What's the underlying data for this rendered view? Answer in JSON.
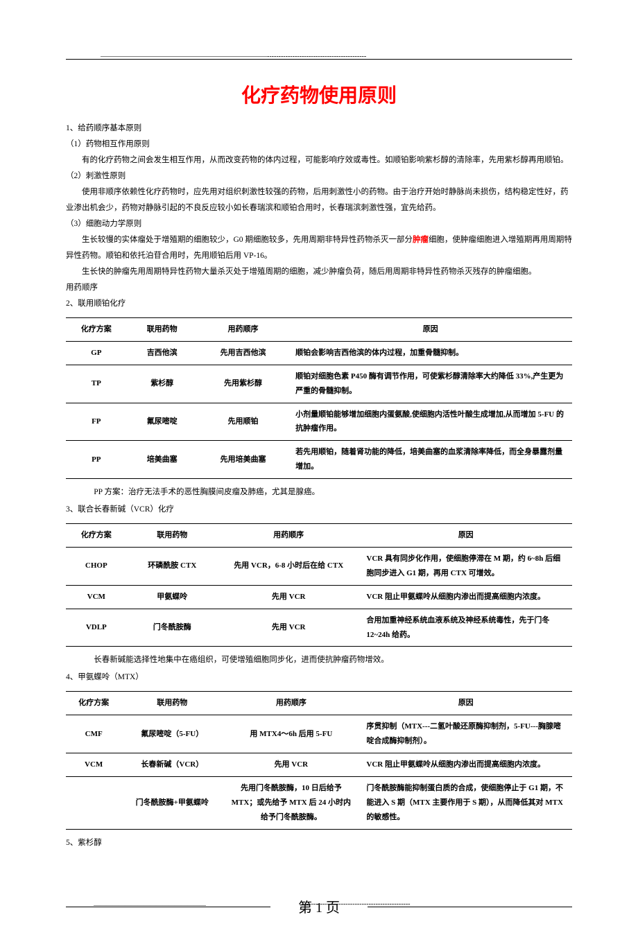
{
  "title": "化疗药物使用原则",
  "sections": {
    "s1": "1、给药顺序基本原则",
    "s1_1": "（1）药物相互作用原则",
    "s1_1_body": "有的化疗药物之间会发生相互作用，从而改变药物的体内过程，可能影响疗效或毒性。如顺铂影响紫杉醇的清除率，先用紫杉醇再用顺铂。",
    "s1_2": "（2）刺激性原则",
    "s1_2_body": "使用非顺序依赖性化疗药物时，应先用对组织刺激性较强的药物，后用刺激性小的药物。由于治疗开始时静脉尚未损伤，结构稳定性好，药业渗出机会少，药物对静脉引起的不良反应较小如长春瑞滨和顺铂合用时，长春瑞滨刺激性强，宜先给药。",
    "s1_3": "（3）细胞动力学原则",
    "s1_3_body_a": "生长较慢的实体瘤处于增殖期的细胞较少，G0 期细胞较多，先用周期非特异性药物杀灭一部分",
    "s1_3_tumor": "肿瘤",
    "s1_3_body_b": "细胞，使肿瘤细胞进入增殖期再用周期特异性药物。顺铂和依托泊苷合用时，先用顺铂后用 VP-16。",
    "s1_3_body2": "生长快的肿瘤先用周期特异性药物大量杀灭处于增殖周期的细胞，减少肿瘤负荷，随后用周期非特异性药物杀灭残存的肿瘤细胞。",
    "s1_order": "用药顺序",
    "s2": "2、联用顺铂化疗"
  },
  "table1": {
    "headers": [
      "化疗方案",
      "联用药物",
      "用药顺序",
      "原因"
    ],
    "rows": [
      {
        "plan": "GP",
        "drug": "吉西他滨",
        "order": "先用吉西他滨",
        "reason": "顺铂会影响吉西他滨的体内过程，加重骨髓抑制。"
      },
      {
        "plan": "TP",
        "drug": "紫杉醇",
        "order": "先用紫杉醇",
        "reason": "顺铂对细胞色素 P450 酶有调节作用，可使紫杉醇清除率大约降低 33%,产生更为严重的骨髓抑制。"
      },
      {
        "plan": "FP",
        "drug": "氟尿嘧啶",
        "order": "先用顺铂",
        "reason": "小剂量顺铂能够增加细胞内蛋氨酸,使细胞内活性叶酸生成增加,从而增加 5-FU 的抗肿瘤作用。"
      },
      {
        "plan": "PP",
        "drug": "培美曲塞",
        "order": "先用培美曲塞",
        "reason": "若先用顺铂，随着肾功能的降低，培美曲塞的血浆清除率降低，而全身暴露剂量增加。"
      }
    ]
  },
  "note1": "PP 方案：治疗无法手术的恶性胸膜间皮瘤及肺癌，尤其是腺癌。",
  "s3": "3、联合长春新碱（VCR）化疗",
  "table2": {
    "headers": [
      "化疗方案",
      "联用药物",
      "用药顺序",
      "原因"
    ],
    "rows": [
      {
        "plan": "CHOP",
        "drug": "环磷酰胺 CTX",
        "order": "先用 VCR，6-8 小时后在给 CTX",
        "reason": "VCR 具有同步化作用，使细胞停滞在 M 期，约 6~8h 后细胞同步进入 G1 期，再用 CTX 可增效。"
      },
      {
        "plan": "VCM",
        "drug": "甲氨蝶呤",
        "order": "先用 VCR",
        "reason": "VCR 阻止甲氨蝶呤从细胞内渗出而提高细胞内浓度。"
      },
      {
        "plan": "VDLP",
        "drug": "门冬酰胺酶",
        "order": "先用 VCR",
        "reason": "合用加重神经系统血液系统及神经系统毒性，先于门冬 12~24h 给药。"
      }
    ]
  },
  "note2": "长春新碱能选择性地集中在癌组织，可使增殖细胞同步化，进而使抗肿瘤药物增效。",
  "s4": "4、甲氨蝶呤（MTX）",
  "table3": {
    "headers": [
      "化疗方案",
      "联用药物",
      "用药顺序",
      "原因"
    ],
    "rows": [
      {
        "plan": "CMF",
        "drug": "氟尿嘧啶（5-FU）",
        "order": "用 MTX4～6h 后用 5-FU",
        "reason": "序贯抑制（MTX---二氢叶酸还原酶抑制剂，5-FU---胸腺嘧啶合成酶抑制剂）。"
      },
      {
        "plan": "VCM",
        "drug": "长春新碱（VCR）",
        "order": "先用 VCR",
        "reason": "VCR 阻止甲氨蝶呤从细胞内渗出而提高细胞内浓度。"
      },
      {
        "plan": "",
        "drug": "门冬酰胺酶+甲氨蝶呤",
        "order": "先用门冬酰胺酶，10 日后给予 MTX；或先给予 MTX 后 24 小时内给予门冬酰胺酶。",
        "reason": "门冬酰胺酶能抑制蛋白质的合成，使细胞停止于 G1 期，不能进入 S 期（MTX 主要作用于 S 期），从而降低其对 MTX 的敏感性。"
      }
    ]
  },
  "s5": "5、紫杉醇",
  "footer": {
    "page_label": "第 1 页"
  },
  "colors": {
    "title": "#ff0000",
    "text": "#000000",
    "background": "#ffffff"
  }
}
